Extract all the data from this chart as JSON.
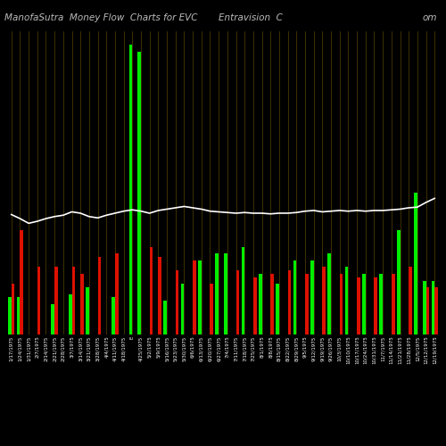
{
  "title": "ManofaSutra  Money Flow  Charts for EVC",
  "title2": "Entravision  C",
  "title3": "om",
  "background_color": "#000000",
  "categories": [
    "1/17/1975",
    "1/24/1975",
    "1/31/1975",
    "2/7/1975",
    "2/14/1975",
    "2/21/1975",
    "2/28/1975",
    "3/7/1975",
    "3/14/1975",
    "3/21/1975",
    "3/28/1975",
    "4/4/1975",
    "4/11/1975",
    "4/18/1975",
    "E",
    "4/25/1975",
    "5/2/1975",
    "5/9/1975",
    "5/16/1975",
    "5/23/1975",
    "5/30/1975",
    "6/6/1975",
    "6/13/1975",
    "6/20/1975",
    "6/27/1975",
    "7/4/1975",
    "7/11/1975",
    "7/18/1975",
    "7/25/1975",
    "8/1/1975",
    "8/8/1975",
    "8/15/1975",
    "8/22/1975",
    "8/29/1975",
    "9/5/1975",
    "9/12/1975",
    "9/19/1975",
    "9/26/1975",
    "10/3/1975",
    "10/10/1975",
    "10/17/1975",
    "10/24/1975",
    "10/31/1975",
    "11/7/1975",
    "11/14/1975",
    "11/21/1975",
    "11/28/1975",
    "12/5/1975",
    "12/12/1975",
    "12/19/1975"
  ],
  "green_values": [
    55,
    55,
    0,
    0,
    0,
    45,
    0,
    60,
    0,
    70,
    0,
    0,
    55,
    0,
    430,
    420,
    0,
    0,
    50,
    0,
    75,
    0,
    110,
    0,
    120,
    120,
    0,
    130,
    0,
    90,
    0,
    75,
    0,
    110,
    0,
    110,
    0,
    120,
    0,
    100,
    0,
    90,
    0,
    90,
    0,
    155,
    0,
    210,
    80,
    80
  ],
  "red_values": [
    75,
    155,
    0,
    100,
    0,
    100,
    0,
    100,
    90,
    0,
    115,
    0,
    120,
    0,
    0,
    0,
    130,
    115,
    0,
    95,
    0,
    110,
    0,
    75,
    0,
    0,
    95,
    0,
    85,
    0,
    90,
    0,
    95,
    0,
    90,
    0,
    100,
    0,
    90,
    0,
    85,
    0,
    85,
    0,
    90,
    0,
    100,
    0,
    70,
    70
  ],
  "line_values": [
    178,
    172,
    165,
    168,
    172,
    175,
    177,
    182,
    180,
    175,
    173,
    177,
    180,
    183,
    185,
    183,
    180,
    184,
    186,
    188,
    190,
    188,
    186,
    183,
    182,
    181,
    180,
    181,
    180,
    180,
    179,
    180,
    180,
    181,
    183,
    184,
    182,
    183,
    184,
    183,
    184,
    183,
    184,
    184,
    185,
    186,
    188,
    189,
    196,
    202
  ],
  "line_color": "#ffffff",
  "green_color": "#00ee00",
  "red_color": "#dd1100",
  "text_color": "#ffffff",
  "grid_color": "#554400",
  "title_color": "#bbbbbb",
  "title_fontsize": 7.5,
  "tick_fontsize": 4.0,
  "ylim": [
    0,
    450
  ],
  "line_scale": 450,
  "figsize": [
    5.0,
    5.0
  ],
  "dpi": 100
}
